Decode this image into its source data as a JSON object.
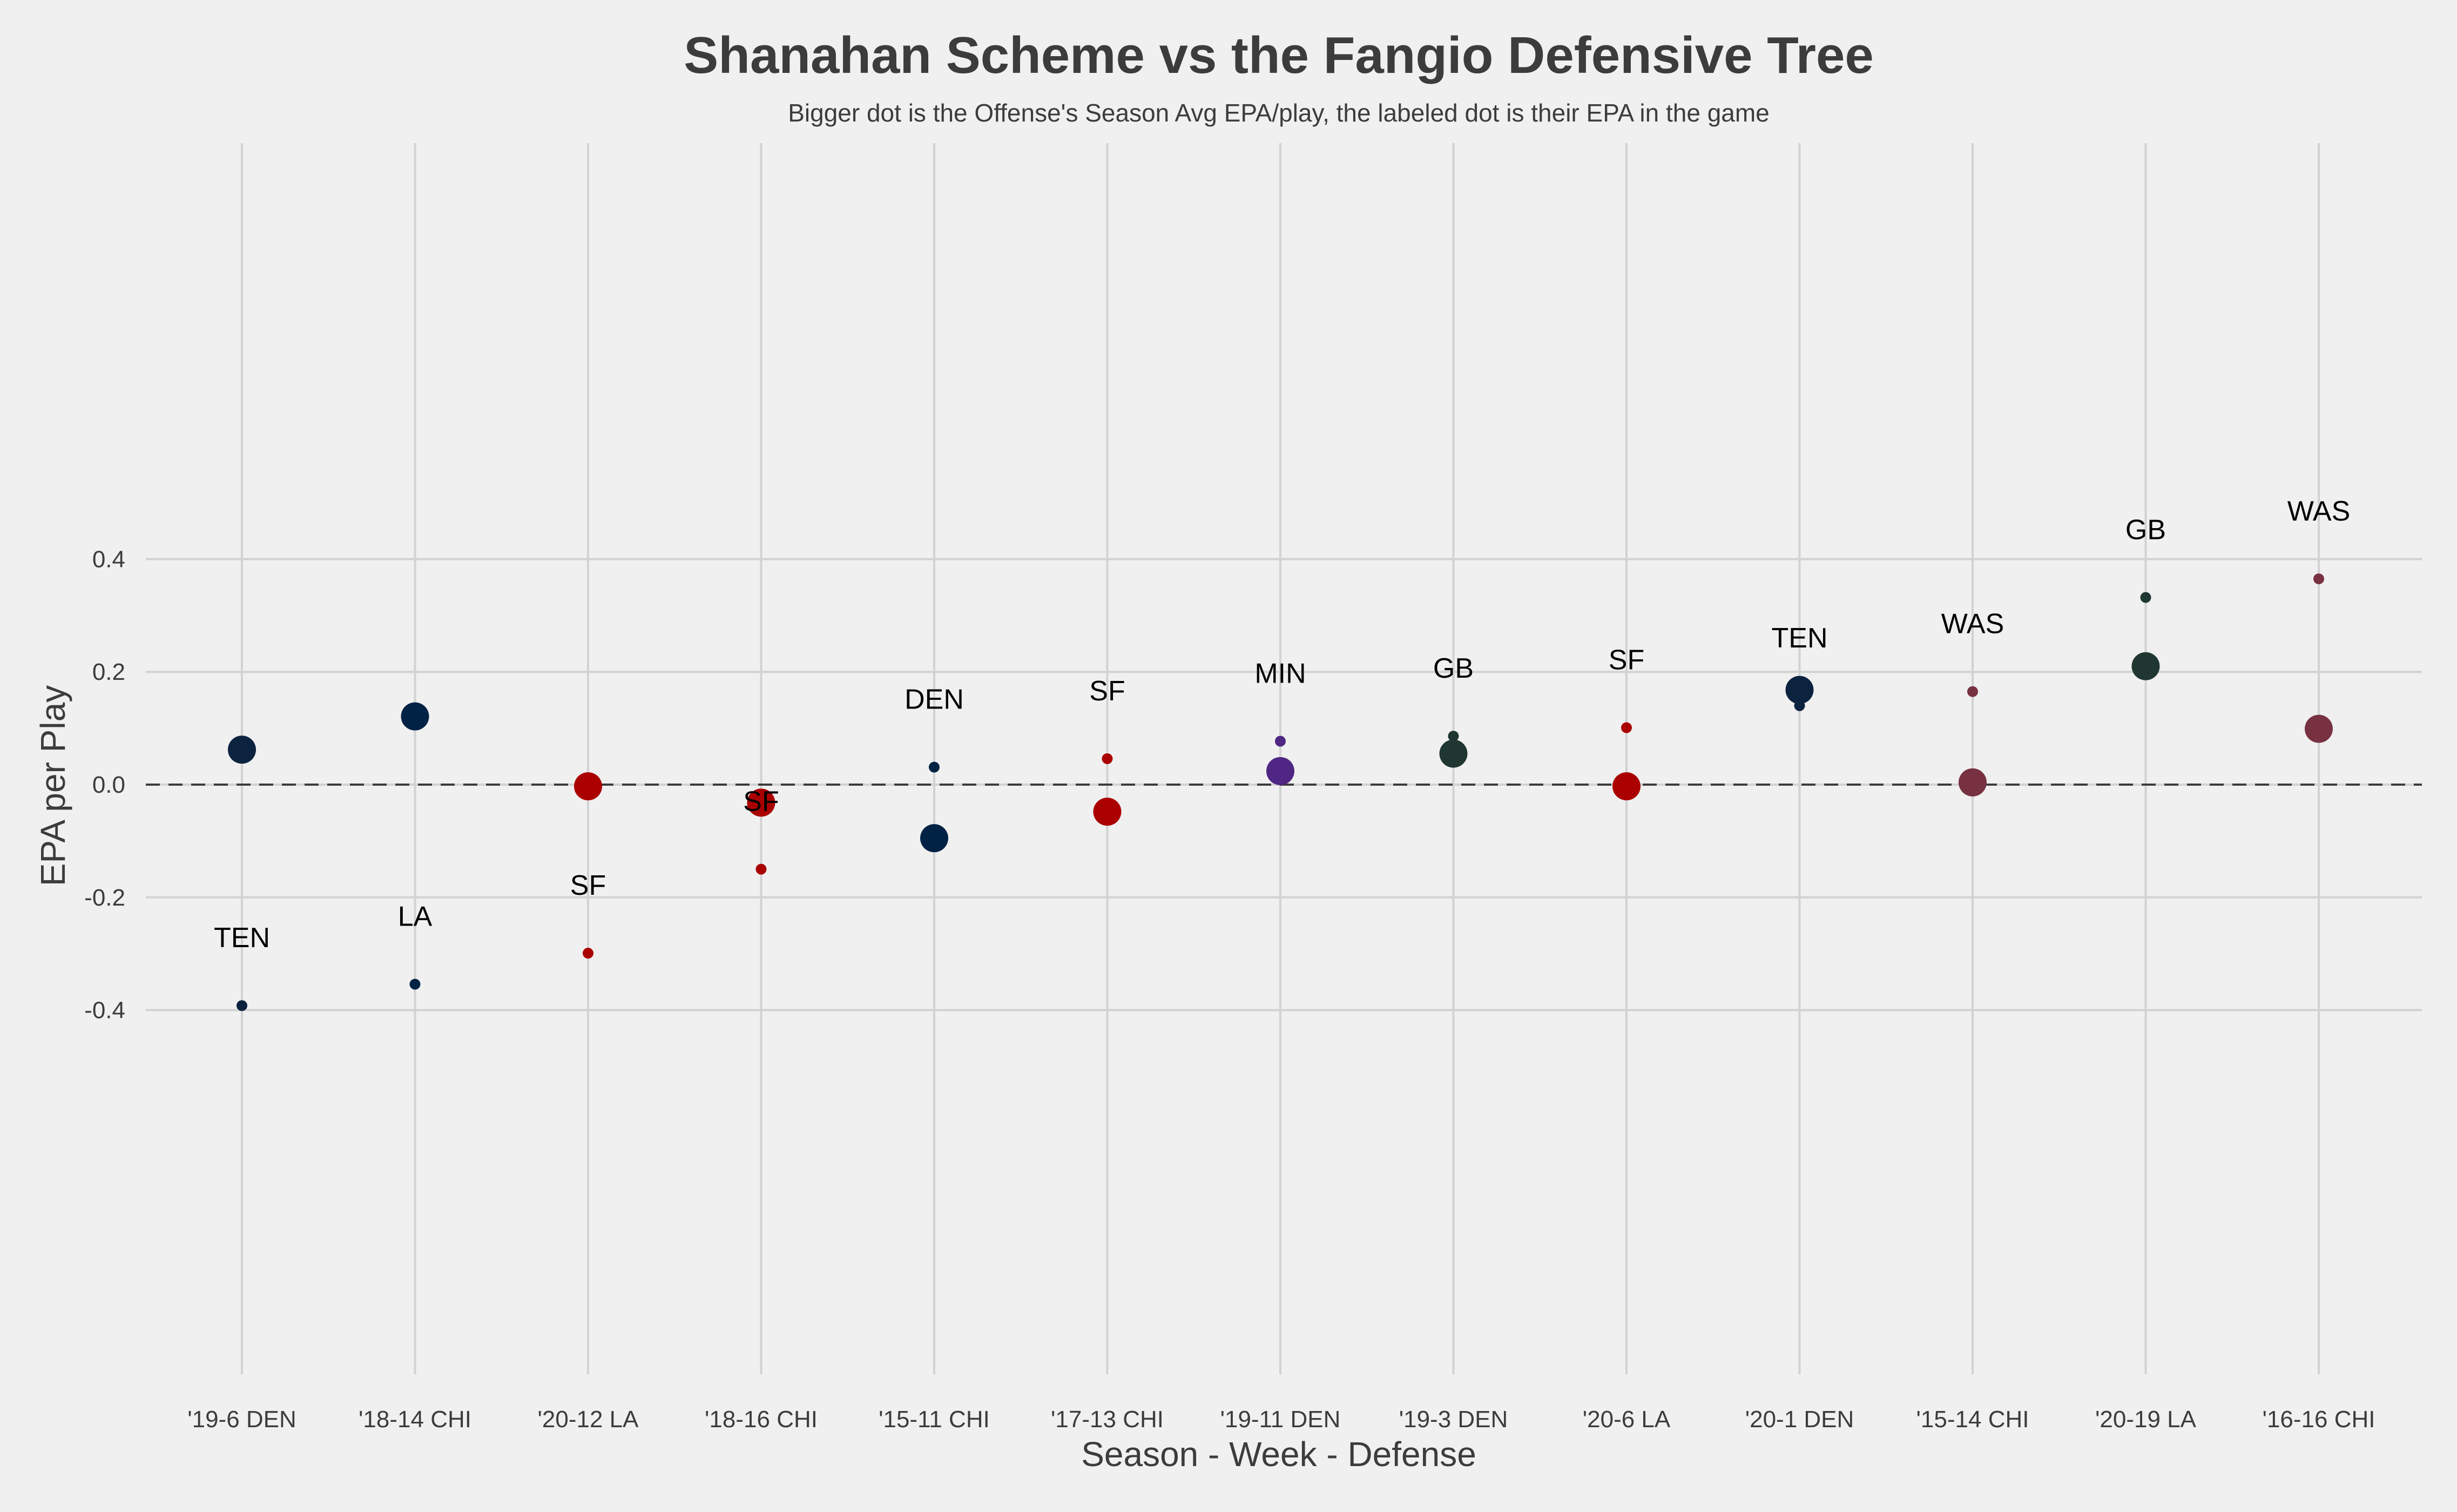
{
  "chart_data": {
    "type": "scatter",
    "title": "Shanahan Scheme vs the Fangio Defensive Tree",
    "subtitle": "Bigger dot is the Offense's Season Avg EPA/play, the labeled dot is their EPA in the game",
    "xlabel": "Season - Week - Defense",
    "ylabel": "EPA per Play",
    "ylim": [
      -0.42,
      0.455
    ],
    "yticks": [
      -0.4,
      -0.2,
      0.0,
      0.2,
      0.4
    ],
    "ytick_labels": [
      "-0.4",
      "-0.2",
      "0.0",
      "0.2",
      "0.4"
    ],
    "reference_line": {
      "y": 0.0,
      "style": "dashed"
    },
    "grid": true,
    "categories": [
      "'19-6 DEN",
      "'18-14 CHI",
      "'20-12 LA",
      "'18-16 CHI",
      "'15-11 CHI",
      "'17-13 CHI",
      "'19-11 DEN",
      "'19-3 DEN",
      "'20-6 LA",
      "'20-1 DEN",
      "'15-14 CHI",
      "'20-19 LA",
      "'16-16 CHI"
    ],
    "points": [
      {
        "category": "'19-6 DEN",
        "offense": "TEN",
        "game_epa": -0.392,
        "season_avg_epa": 0.062,
        "color": "#0c2340"
      },
      {
        "category": "'18-14 CHI",
        "offense": "LA",
        "game_epa": -0.354,
        "season_avg_epa": 0.121,
        "color": "#002244"
      },
      {
        "category": "'20-12 LA",
        "offense": "SF",
        "game_epa": -0.299,
        "season_avg_epa": -0.003,
        "color": "#aa0000"
      },
      {
        "category": "'18-16 CHI",
        "offense": "SF",
        "game_epa": -0.15,
        "season_avg_epa": -0.032,
        "color": "#aa0000"
      },
      {
        "category": "'15-11 CHI",
        "offense": "DEN",
        "game_epa": 0.031,
        "season_avg_epa": -0.095,
        "color": "#002244"
      },
      {
        "category": "'17-13 CHI",
        "offense": "SF",
        "game_epa": 0.046,
        "season_avg_epa": -0.048,
        "color": "#aa0000"
      },
      {
        "category": "'19-11 DEN",
        "offense": "MIN",
        "game_epa": 0.077,
        "season_avg_epa": 0.024,
        "color": "#4f2683"
      },
      {
        "category": "'19-3 DEN",
        "offense": "GB",
        "game_epa": 0.086,
        "season_avg_epa": 0.055,
        "color": "#203731"
      },
      {
        "category": "'20-6 LA",
        "offense": "SF",
        "game_epa": 0.101,
        "season_avg_epa": -0.003,
        "color": "#aa0000"
      },
      {
        "category": "'20-1 DEN",
        "offense": "TEN",
        "game_epa": 0.14,
        "season_avg_epa": 0.168,
        "color": "#0c2340"
      },
      {
        "category": "'15-14 CHI",
        "offense": "WAS",
        "game_epa": 0.165,
        "season_avg_epa": 0.004,
        "color": "#773141"
      },
      {
        "category": "'20-19 LA",
        "offense": "GB",
        "game_epa": 0.332,
        "season_avg_epa": 0.21,
        "color": "#203731"
      },
      {
        "category": "'16-16 CHI",
        "offense": "WAS",
        "game_epa": 0.365,
        "season_avg_epa": 0.099,
        "color": "#773141"
      }
    ]
  }
}
